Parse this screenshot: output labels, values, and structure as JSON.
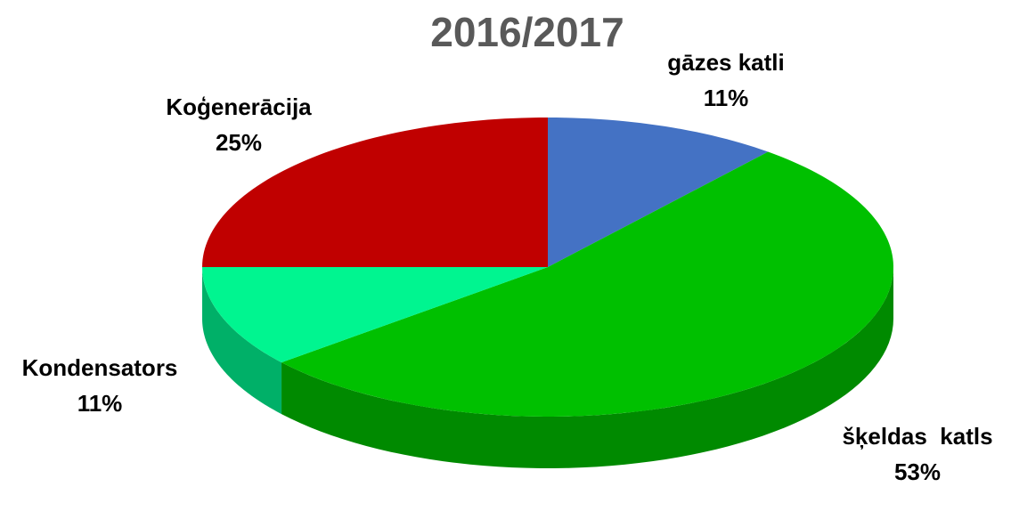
{
  "chart_data": {
    "type": "pie",
    "title": "2016/2017",
    "categories": [
      "gāzes katli",
      "šķeldas  katls",
      "Kondensators",
      "Koģenerācija"
    ],
    "values": [
      11,
      53,
      11,
      25
    ],
    "value_labels": [
      "11%",
      "53%",
      "11%",
      "25%"
    ],
    "colors": [
      "#4472c4",
      "#00c000",
      "#00f590",
      "#c00000"
    ]
  }
}
